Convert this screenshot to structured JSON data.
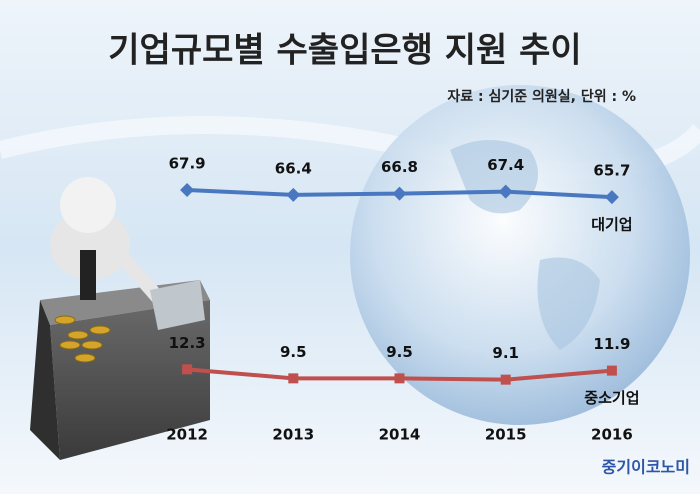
{
  "chart_data": {
    "type": "line",
    "title": "기업규모별 수출입은행 지원 추이",
    "subtitle": "자료 : 심기준 의원실, 단위 : %",
    "categories": [
      "2012",
      "2013",
      "2014",
      "2015",
      "2016"
    ],
    "series": [
      {
        "name": "대기업",
        "color": "#4a78c0",
        "marker": "diamond",
        "values": [
          67.9,
          66.4,
          66.8,
          67.4,
          65.7
        ]
      },
      {
        "name": "중소기업",
        "color": "#c0504d",
        "marker": "square",
        "values": [
          12.3,
          9.5,
          9.5,
          9.1,
          11.9
        ]
      }
    ],
    "ylim": [
      0,
      80
    ],
    "brand": "중기이코노미"
  }
}
